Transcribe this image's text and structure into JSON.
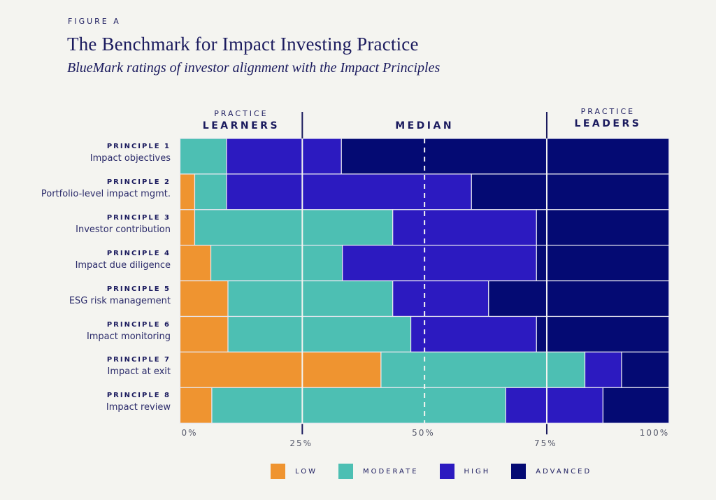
{
  "figure_label": "FIGURE A",
  "chart_data": {
    "type": "bar",
    "orientation": "horizontal-stacked-100",
    "title": "The Benchmark for Impact Investing Practice",
    "subtitle": "BlueMark ratings of investor alignment with the Impact Principles",
    "xlabel": "",
    "ylabel": "",
    "xlim": [
      0,
      100
    ],
    "x_ticks": [
      "0%",
      "25%",
      "50%",
      "75%",
      "100%"
    ],
    "x_tick_values": [
      0,
      25,
      50,
      75,
      100
    ],
    "zones": [
      {
        "small": "PRACTICE",
        "big": "LEARNERS",
        "from": 0,
        "to": 25
      },
      {
        "small": "",
        "big": "MEDIAN",
        "from": 25,
        "to": 75
      },
      {
        "small": "PRACTICE",
        "big": "LEADERS",
        "from": 75,
        "to": 100
      }
    ],
    "median_line": 50,
    "categories": [
      {
        "num": "PRINCIPLE 1",
        "name": "Impact objectives"
      },
      {
        "num": "PRINCIPLE 2",
        "name": "Portfolio-level impact mgmt."
      },
      {
        "num": "PRINCIPLE 3",
        "name": "Investor contribution"
      },
      {
        "num": "PRINCIPLE 4",
        "name": "Impact due diligence"
      },
      {
        "num": "PRINCIPLE 5",
        "name": "ESG risk management"
      },
      {
        "num": "PRINCIPLE 6",
        "name": "Impact monitoring"
      },
      {
        "num": "PRINCIPLE 7",
        "name": "Impact at exit"
      },
      {
        "num": "PRINCIPLE 8",
        "name": "Impact review"
      }
    ],
    "series": [
      {
        "name": "LOW",
        "color": "#ef9430",
        "values": [
          0,
          3,
          3,
          6.3,
          9.8,
          9.8,
          41.1,
          6.5
        ]
      },
      {
        "name": "MODERATE",
        "color": "#4dbfb3",
        "values": [
          9.5,
          6.5,
          40.5,
          26.9,
          33.7,
          37.4,
          41.7,
          60.1
        ]
      },
      {
        "name": "HIGH",
        "color": "#2c1ac0",
        "values": [
          23.5,
          50.1,
          29.4,
          39.7,
          19.6,
          25.7,
          7.5,
          19.9
        ]
      },
      {
        "name": "ADVANCED",
        "color": "#040a73",
        "values": [
          67,
          40.4,
          27.1,
          27.1,
          36.9,
          27.1,
          9.7,
          13.5
        ]
      }
    ],
    "legend_position": "bottom"
  }
}
